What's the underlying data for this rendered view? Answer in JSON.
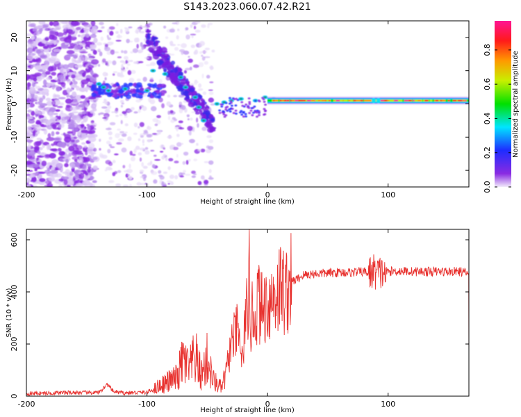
{
  "title": "S143.2023.060.07.42.R21",
  "chart_data": [
    {
      "type": "heatmap",
      "xlabel": "Height of straight line (km)",
      "ylabel": "Frequency (Hz)",
      "xlim": [
        -200,
        167
      ],
      "ylim": [
        -25,
        25
      ],
      "xticks": [
        -200,
        -100,
        0,
        100
      ],
      "yticks": [
        -20,
        -10,
        0,
        10,
        20
      ],
      "colorbar": {
        "label": "Normalized spectral amplitude",
        "range": [
          0,
          0.97
        ],
        "ticks": [
          0.0,
          0.2,
          0.4,
          0.6,
          0.8
        ],
        "colors": [
          "#e8dcf8",
          "#8a2be2",
          "#1e2cff",
          "#00e5ff",
          "#00e000",
          "#c8f000",
          "#ff9a00",
          "#ff1a1a",
          "#ff1493"
        ]
      },
      "features": [
        {
          "description": "dominant tone",
          "x_range": [
            0,
            167
          ],
          "freq_hz": 1
        },
        {
          "description": "descending feature",
          "x_range": [
            -100,
            -50
          ],
          "freq_hz_range": [
            20,
            -6
          ]
        }
      ]
    },
    {
      "type": "line",
      "xlabel": "Height of straight line (km)",
      "ylabel": "SNR (10 * v/v)",
      "xlim": [
        -200,
        167
      ],
      "ylim": [
        0,
        640
      ],
      "xticks": [
        -200,
        -100,
        0,
        100
      ],
      "yticks": [
        0,
        200,
        400,
        600
      ],
      "series": [
        {
          "color": "#e8322f",
          "x": [
            -200,
            -180,
            -160,
            -140,
            -133,
            -128,
            -120,
            -100,
            -95,
            -90,
            -80,
            -75,
            -70,
            -65,
            -60,
            -55,
            -50,
            -45,
            -40,
            -38,
            -35,
            -30,
            -25,
            -20,
            -18,
            -16,
            -15,
            -14,
            -12,
            -10,
            -8,
            -5,
            0,
            5,
            10,
            15,
            20,
            25,
            30,
            40,
            50,
            60,
            70,
            80,
            85,
            88,
            92,
            96,
            100,
            110,
            120,
            130,
            140,
            150,
            160,
            167
          ],
          "values": [
            10,
            12,
            14,
            13,
            45,
            18,
            12,
            15,
            25,
            40,
            60,
            70,
            140,
            100,
            150,
            80,
            140,
            60,
            40,
            30,
            80,
            200,
            250,
            120,
            420,
            150,
            640,
            260,
            330,
            300,
            380,
            330,
            360,
            380,
            420,
            400,
            440,
            450,
            465,
            470,
            472,
            475,
            475,
            478,
            470,
            480,
            470,
            475,
            478,
            480,
            478,
            478,
            478,
            478,
            478,
            470
          ]
        }
      ]
    }
  ]
}
